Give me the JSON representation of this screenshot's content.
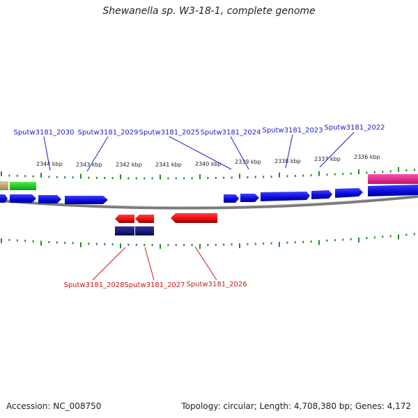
{
  "title": "Shewanella sp. W3-18-1, complete genome",
  "footer": {
    "accession": "Accession: NC_008750",
    "topology": "Topology: circular; Length: 4,708,380 bp; Genes: 4,172"
  },
  "scale_labels": [
    "2344 kbp",
    "2343 kbp",
    "2342 kbp",
    "2341 kbp",
    "2340 kbp",
    "2339 kbp",
    "2338 kbp",
    "2337 kbp",
    "2336 kbp"
  ],
  "genes_top": [
    "Sputw3181_2030",
    "Sputw3181_2029",
    "Sputw3181_2025",
    "Sputw3181_2024",
    "Sputw3181_2023",
    "Sputw3181_2022"
  ],
  "genes_bottom": [
    "Sputw3181_2028",
    "Sputw3181_2027",
    "Sputw3181_2026"
  ],
  "colors": {
    "forward_gene": "#1010e0",
    "reverse_gene": "#ee1010",
    "rna_gene": "#1a1a80",
    "pink_feature": "#ee2090",
    "green_feature": "#22cc22",
    "tan_feature": "#c8b070",
    "tick": "#228822",
    "top_label": "#1a1ad6",
    "bottom_label": "#cc1515",
    "backbone": "#888888"
  }
}
